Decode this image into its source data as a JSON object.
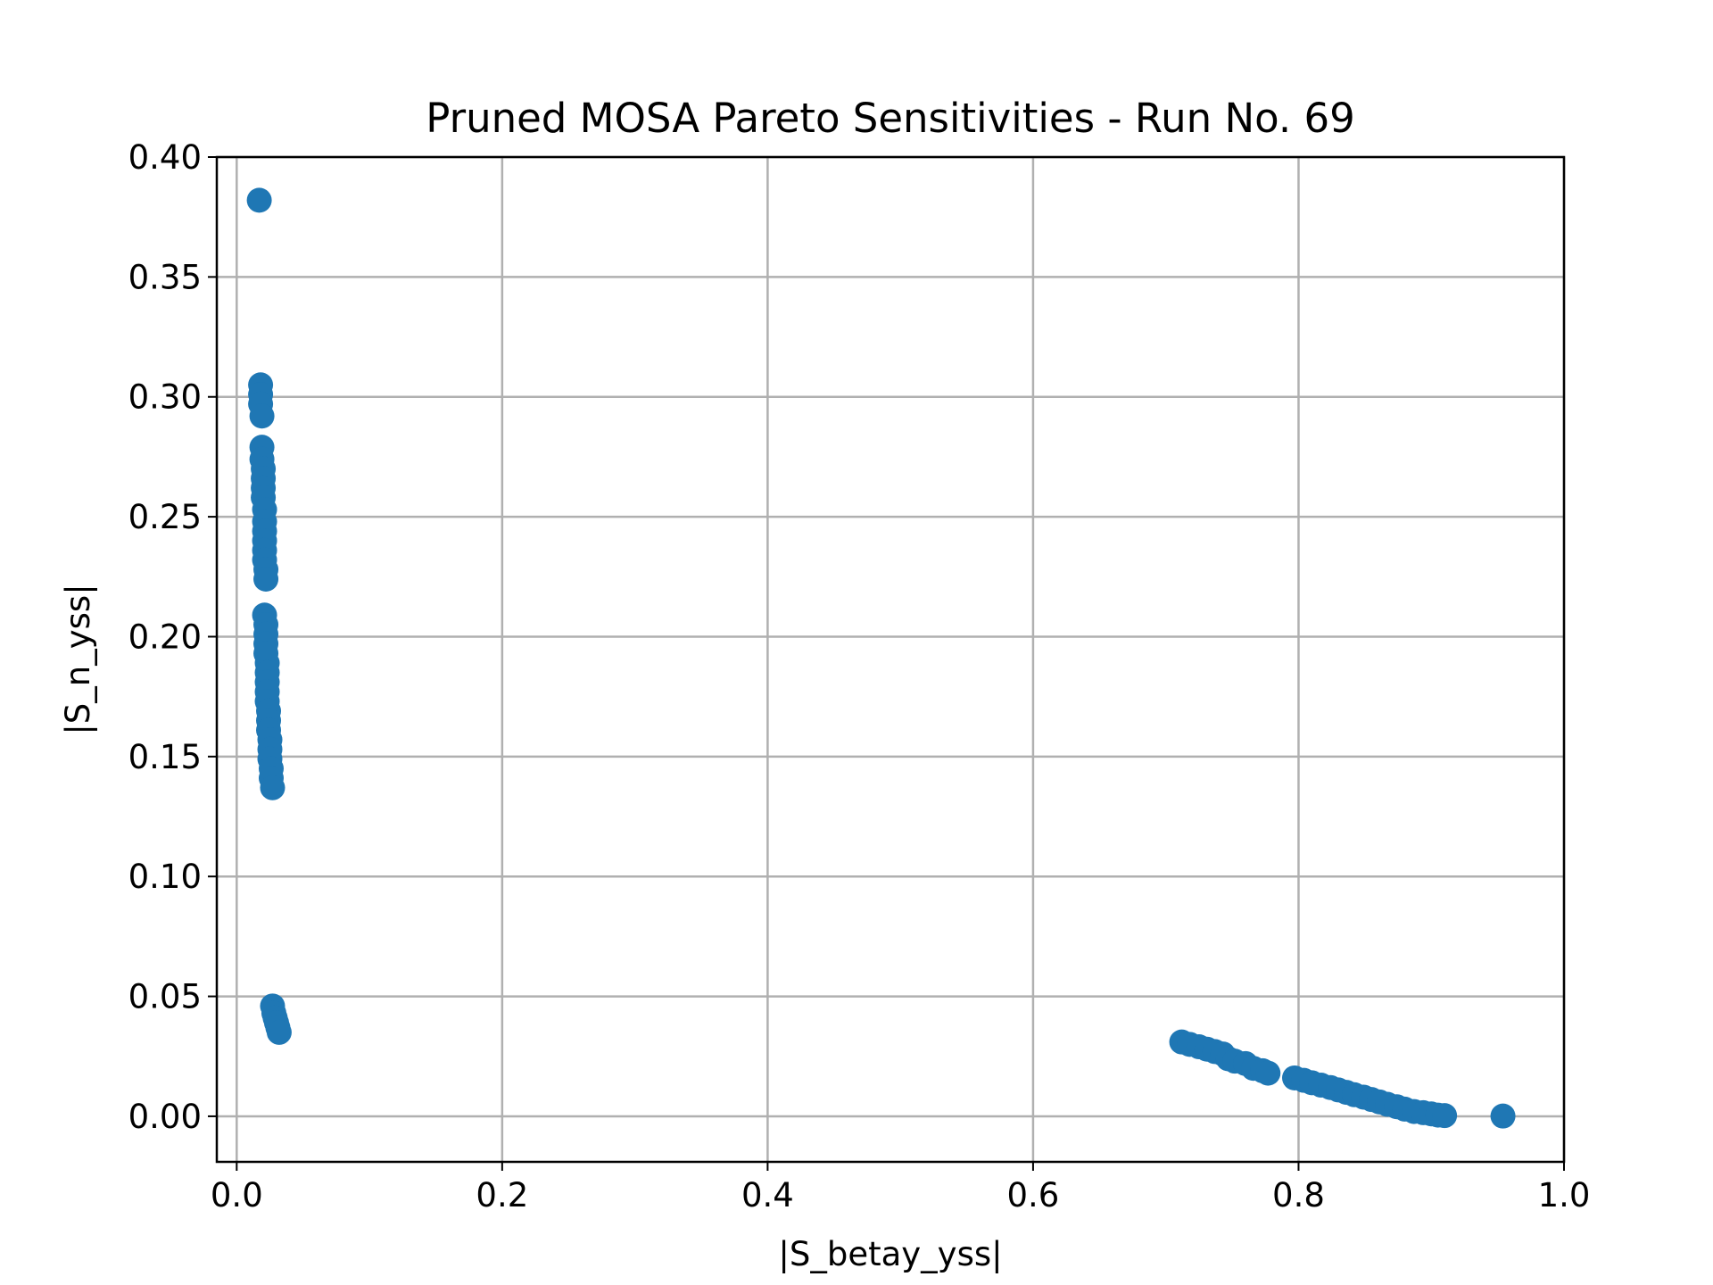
{
  "chart_data": {
    "type": "scatter",
    "title": "Pruned MOSA Pareto Sensitivities - Run No. 69",
    "xlabel": "|S_betay_yss|",
    "ylabel": "|S_n_yss|",
    "xlim": [
      -0.015,
      1.0
    ],
    "ylim": [
      -0.019,
      0.4
    ],
    "xticks": [
      0.0,
      0.2,
      0.4,
      0.6,
      0.8,
      1.0
    ],
    "xtick_labels": [
      "0.0",
      "0.2",
      "0.4",
      "0.6",
      "0.8",
      "1.0"
    ],
    "yticks": [
      0.0,
      0.05,
      0.1,
      0.15,
      0.2,
      0.25,
      0.3,
      0.35,
      0.4
    ],
    "ytick_labels": [
      "0.00",
      "0.05",
      "0.10",
      "0.15",
      "0.20",
      "0.25",
      "0.30",
      "0.35",
      "0.40"
    ],
    "grid": true,
    "marker_color": "#1f77b4",
    "series": [
      {
        "points": [
          [
            0.017,
            0.382
          ],
          [
            0.018,
            0.305
          ],
          [
            0.018,
            0.301
          ],
          [
            0.018,
            0.297
          ],
          [
            0.019,
            0.292
          ],
          [
            0.019,
            0.279
          ],
          [
            0.019,
            0.274
          ],
          [
            0.02,
            0.27
          ],
          [
            0.02,
            0.266
          ],
          [
            0.02,
            0.262
          ],
          [
            0.02,
            0.258
          ],
          [
            0.021,
            0.253
          ],
          [
            0.021,
            0.248
          ],
          [
            0.021,
            0.244
          ],
          [
            0.021,
            0.24
          ],
          [
            0.021,
            0.236
          ],
          [
            0.021,
            0.232
          ],
          [
            0.022,
            0.228
          ],
          [
            0.022,
            0.224
          ],
          [
            0.021,
            0.209
          ],
          [
            0.022,
            0.205
          ],
          [
            0.022,
            0.201
          ],
          [
            0.022,
            0.197
          ],
          [
            0.022,
            0.193
          ],
          [
            0.023,
            0.189
          ],
          [
            0.023,
            0.185
          ],
          [
            0.023,
            0.181
          ],
          [
            0.023,
            0.177
          ],
          [
            0.023,
            0.173
          ],
          [
            0.024,
            0.169
          ],
          [
            0.024,
            0.165
          ],
          [
            0.024,
            0.161
          ],
          [
            0.025,
            0.157
          ],
          [
            0.025,
            0.153
          ],
          [
            0.025,
            0.149
          ],
          [
            0.026,
            0.145
          ],
          [
            0.026,
            0.141
          ],
          [
            0.027,
            0.137
          ],
          [
            0.027,
            0.046
          ],
          [
            0.028,
            0.043
          ],
          [
            0.029,
            0.041
          ],
          [
            0.03,
            0.039
          ],
          [
            0.031,
            0.037
          ],
          [
            0.032,
            0.035
          ],
          [
            0.712,
            0.031
          ],
          [
            0.718,
            0.03
          ],
          [
            0.725,
            0.029
          ],
          [
            0.731,
            0.028
          ],
          [
            0.737,
            0.027
          ],
          [
            0.743,
            0.026
          ],
          [
            0.747,
            0.024
          ],
          [
            0.752,
            0.023
          ],
          [
            0.76,
            0.022
          ],
          [
            0.766,
            0.02
          ],
          [
            0.773,
            0.019
          ],
          [
            0.777,
            0.018
          ],
          [
            0.797,
            0.016
          ],
          [
            0.804,
            0.015
          ],
          [
            0.81,
            0.014
          ],
          [
            0.817,
            0.013
          ],
          [
            0.824,
            0.012
          ],
          [
            0.83,
            0.011
          ],
          [
            0.836,
            0.01
          ],
          [
            0.842,
            0.009
          ],
          [
            0.849,
            0.008
          ],
          [
            0.855,
            0.007
          ],
          [
            0.861,
            0.006
          ],
          [
            0.867,
            0.005
          ],
          [
            0.874,
            0.004
          ],
          [
            0.88,
            0.003
          ],
          [
            0.887,
            0.002
          ],
          [
            0.894,
            0.0015
          ],
          [
            0.9,
            0.001
          ],
          [
            0.905,
            0.0005
          ],
          [
            0.91,
            0.0003
          ],
          [
            0.954,
            0.0001
          ]
        ]
      }
    ]
  }
}
